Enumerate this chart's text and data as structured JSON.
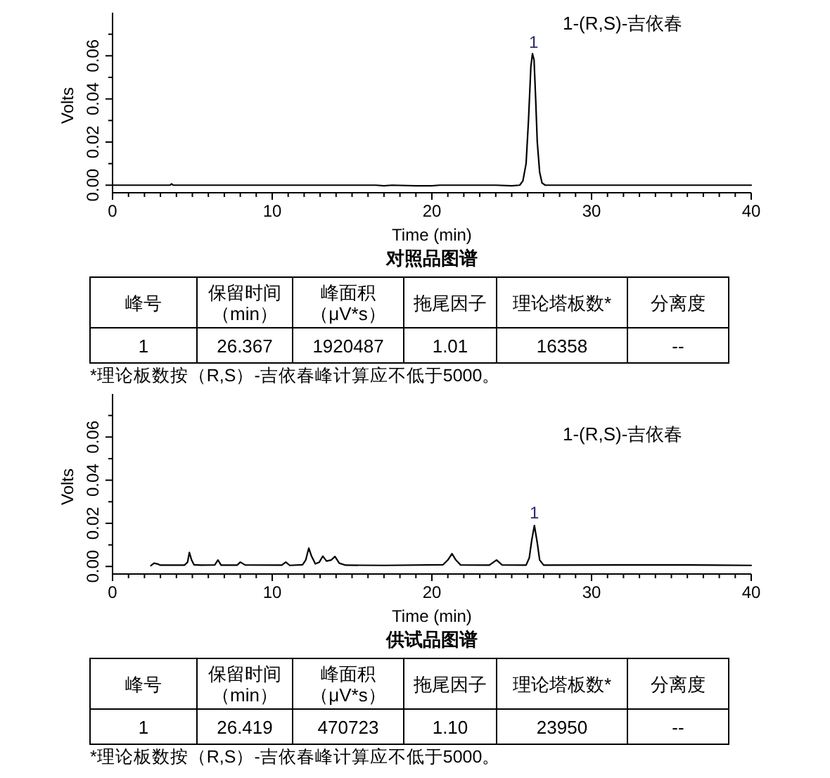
{
  "chart_data": [
    {
      "type": "line",
      "title": "对照品图谱",
      "xlabel": "Time (min)",
      "ylabel": "Volts",
      "xlim": [
        0,
        40
      ],
      "ylim": [
        -0.0035,
        0.08
      ],
      "xticks": [
        0,
        {
          "value": 1,
          "label": null
        },
        {
          "value": 2,
          "label": null
        },
        {
          "value": 3,
          "label": null
        },
        {
          "value": 4,
          "label": null
        },
        {
          "value": 5,
          "label": null
        },
        {
          "value": 6,
          "label": null
        },
        {
          "value": 7,
          "label": null
        },
        {
          "value": 8,
          "label": null
        },
        {
          "value": 9,
          "label": null
        },
        10,
        {
          "value": 11,
          "label": null
        },
        {
          "value": 12,
          "label": null
        },
        {
          "value": 13,
          "label": null
        },
        {
          "value": 14,
          "label": null
        },
        {
          "value": 15,
          "label": null
        },
        {
          "value": 16,
          "label": null
        },
        {
          "value": 17,
          "label": null
        },
        {
          "value": 18,
          "label": null
        },
        {
          "value": 19,
          "label": null
        },
        20,
        {
          "value": 21,
          "label": null
        },
        {
          "value": 22,
          "label": null
        },
        {
          "value": 23,
          "label": null
        },
        {
          "value": 24,
          "label": null
        },
        {
          "value": 25,
          "label": null
        },
        {
          "value": 26,
          "label": null
        },
        {
          "value": 27,
          "label": null
        },
        {
          "value": 28,
          "label": null
        },
        {
          "value": 29,
          "label": null
        },
        30,
        {
          "value": 31,
          "label": null
        },
        {
          "value": 32,
          "label": null
        },
        {
          "value": 33,
          "label": null
        },
        {
          "value": 34,
          "label": null
        },
        {
          "value": 35,
          "label": null
        },
        {
          "value": 36,
          "label": null
        },
        {
          "value": 37,
          "label": null
        },
        {
          "value": 38,
          "label": null
        },
        {
          "value": 39,
          "label": null
        },
        40
      ],
      "yticks": [
        {
          "value": 0,
          "label": "0.00"
        },
        {
          "value": 0.01,
          "label": null
        },
        {
          "value": 0.02,
          "label": "0.02"
        },
        {
          "value": 0.03,
          "label": null
        },
        {
          "value": 0.04,
          "label": "0.04"
        },
        {
          "value": 0.05,
          "label": null
        },
        {
          "value": 0.06,
          "label": "0.06"
        },
        {
          "value": 0.07,
          "label": null
        }
      ],
      "series": [
        {
          "color": "#000000",
          "x": [
            0,
            3.6,
            3.7,
            3.8,
            16.5,
            17,
            17.5,
            19,
            20,
            20.5,
            24,
            25,
            25.5,
            25.7,
            25.9,
            26.05,
            26.2,
            26.3,
            26.4,
            26.5,
            26.6,
            26.75,
            26.9,
            27.1,
            40
          ],
          "values": [
            0,
            0,
            0.0006,
            0,
            0,
            -0.0003,
            0,
            -0.0003,
            -0.0003,
            0,
            0,
            -0.0003,
            0,
            0.002,
            0.01,
            0.03,
            0.055,
            0.061,
            0.058,
            0.04,
            0.02,
            0.006,
            0.001,
            0,
            0
          ]
        }
      ],
      "annotations": [
        "1-(R,S)-吉依春",
        {
          "text": "1",
          "x": 26.37,
          "y": 0.061
        },
        "峰号",
        "保留时间（min）",
        "峰面积（μV*s）",
        "拖尾因子",
        "理论塔板数*",
        "分离度",
        "1",
        "26.367",
        "1920487",
        "1.01",
        "16358",
        "--",
        "*理论板数按（R,S）-吉依春峰计算应不低于5000。"
      ]
    },
    {
      "type": "line",
      "title": "供试品图谱",
      "xlabel": "Time (min)",
      "ylabel": "Volts",
      "xlim": [
        0,
        40
      ],
      "ylim": [
        -0.0035,
        0.08
      ],
      "xticks": [
        0,
        {
          "value": 1,
          "label": null
        },
        {
          "value": 2,
          "label": null
        },
        {
          "value": 3,
          "label": null
        },
        {
          "value": 4,
          "label": null
        },
        {
          "value": 5,
          "label": null
        },
        {
          "value": 6,
          "label": null
        },
        {
          "value": 7,
          "label": null
        },
        {
          "value": 8,
          "label": null
        },
        {
          "value": 9,
          "label": null
        },
        10,
        {
          "value": 11,
          "label": null
        },
        {
          "value": 12,
          "label": null
        },
        {
          "value": 13,
          "label": null
        },
        {
          "value": 14,
          "label": null
        },
        {
          "value": 15,
          "label": null
        },
        {
          "value": 16,
          "label": null
        },
        {
          "value": 17,
          "label": null
        },
        {
          "value": 18,
          "label": null
        },
        {
          "value": 19,
          "label": null
        },
        20,
        {
          "value": 21,
          "label": null
        },
        {
          "value": 22,
          "label": null
        },
        {
          "value": 23,
          "label": null
        },
        {
          "value": 24,
          "label": null
        },
        {
          "value": 25,
          "label": null
        },
        {
          "value": 26,
          "label": null
        },
        {
          "value": 27,
          "label": null
        },
        {
          "value": 28,
          "label": null
        },
        {
          "value": 29,
          "label": null
        },
        30,
        {
          "value": 31,
          "label": null
        },
        {
          "value": 32,
          "label": null
        },
        {
          "value": 33,
          "label": null
        },
        {
          "value": 34,
          "label": null
        },
        {
          "value": 35,
          "label": null
        },
        {
          "value": 36,
          "label": null
        },
        {
          "value": 37,
          "label": null
        },
        {
          "value": 38,
          "label": null
        },
        {
          "value": 39,
          "label": null
        },
        40
      ],
      "yticks": [
        {
          "value": 0,
          "label": "0.00"
        },
        {
          "value": 0.01,
          "label": null
        },
        {
          "value": 0.02,
          "label": "0.02"
        },
        {
          "value": 0.03,
          "label": null
        },
        {
          "value": 0.04,
          "label": "0.04"
        },
        {
          "value": 0.05,
          "label": null
        },
        {
          "value": 0.06,
          "label": "0.06"
        },
        {
          "value": 0.07,
          "label": null
        }
      ],
      "series": [
        {
          "color": "#000000",
          "x": [
            2.4,
            2.6,
            2.8,
            3.0,
            4.5,
            4.7,
            4.81,
            4.95,
            5.1,
            5.5,
            6.4,
            6.6,
            6.8,
            7.8,
            8.0,
            8.3,
            10.6,
            10.85,
            11.1,
            11.9,
            12.1,
            12.29,
            12.45,
            12.7,
            12.95,
            13.17,
            13.4,
            13.7,
            13.93,
            14.2,
            14.6,
            17,
            20.7,
            21.0,
            21.26,
            21.5,
            21.8,
            23.6,
            24.05,
            24.4,
            25.9,
            26.1,
            26.25,
            26.42,
            26.6,
            26.75,
            27.0,
            32,
            36,
            40
          ],
          "values": [
            0.0004,
            0.0015,
            0.0012,
            0.0006,
            0.0006,
            0.002,
            0.0065,
            0.003,
            0.0008,
            0.0006,
            0.0007,
            0.003,
            0.0006,
            0.0006,
            0.002,
            0.0007,
            0.0006,
            0.002,
            0.0005,
            0.0008,
            0.003,
            0.0085,
            0.005,
            0.0012,
            0.002,
            0.0048,
            0.0025,
            0.003,
            0.0046,
            0.0015,
            0.0006,
            0.0005,
            0.0008,
            0.003,
            0.0059,
            0.003,
            0.0007,
            0.0006,
            0.003,
            0.0007,
            0.0006,
            0.004,
            0.012,
            0.019,
            0.011,
            0.003,
            0.0006,
            0.0007,
            0.0007,
            0.0005
          ]
        }
      ],
      "annotations": [
        "1-(R,S)-吉依春",
        {
          "text": "1",
          "x": 26.42,
          "y": 0.0195
        },
        "峰号",
        "保留时间（min）",
        "峰面积（μV*s）",
        "拖尾因子",
        "理论塔板数*",
        "分离度",
        "1",
        "26.419",
        "470723",
        "1.10",
        "23950",
        "--",
        "*理论板数按（R,S）-吉依春峰计算应不低于5000。"
      ]
    }
  ]
}
